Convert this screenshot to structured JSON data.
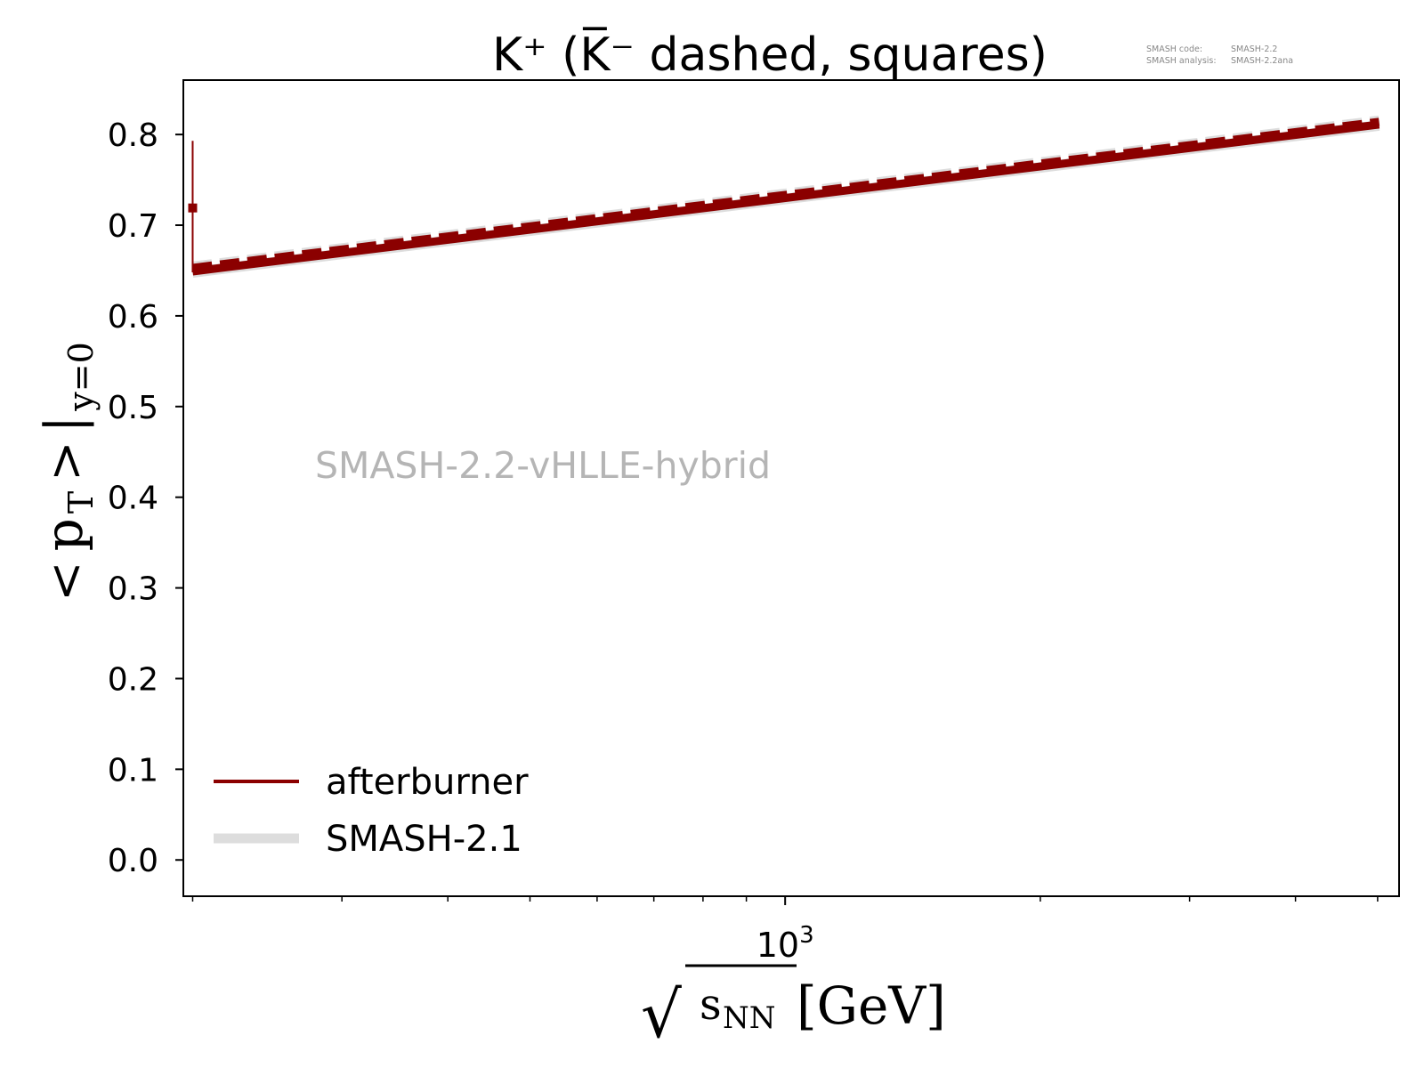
{
  "chart_data": {
    "type": "line",
    "title": "K⁺ (K̅⁻ dashed, squares)",
    "watermark": "SMASH-2.2-vHLLE-hybrid",
    "version_info": {
      "code_label": "SMASH code:",
      "code_value": "SMASH-2.2",
      "analysis_label": "SMASH analysis:",
      "analysis_value": "SMASH-2.2ana"
    },
    "xlabel": {
      "sqrt": "√",
      "s": "s",
      "subscript": "NN",
      "unit": "[GeV]"
    },
    "ylabel": {
      "lt": "<",
      "p": "p",
      "subscript": "T",
      "gt": ">",
      "bar": "|",
      "cond": "y=0"
    },
    "xscale": "log",
    "xlim": [
      195,
      5300
    ],
    "ylim": [
      -0.04,
      0.86
    ],
    "x_major_ticks": [
      {
        "value": 1000,
        "base": "10",
        "exp": "3"
      }
    ],
    "x_minor_ticks": [
      200,
      300,
      400,
      500,
      600,
      700,
      800,
      900,
      2000,
      3000,
      4000,
      5000
    ],
    "y_ticks": [
      {
        "value": 0.0,
        "label": "0.0"
      },
      {
        "value": 0.1,
        "label": "0.1"
      },
      {
        "value": 0.2,
        "label": "0.2"
      },
      {
        "value": 0.3,
        "label": "0.3"
      },
      {
        "value": 0.4,
        "label": "0.4"
      },
      {
        "value": 0.5,
        "label": "0.5"
      },
      {
        "value": 0.6,
        "label": "0.6"
      },
      {
        "value": 0.7,
        "label": "0.7"
      },
      {
        "value": 0.8,
        "label": "0.8"
      }
    ],
    "series": [
      {
        "name": "SMASH-2.1",
        "kind": "reference",
        "color": "#dddddd",
        "dashed": false,
        "x": [
          200,
          5020
        ],
        "y": [
          0.648,
          0.81
        ]
      },
      {
        "name": "SMASH-2.1",
        "kind": "reference",
        "color": "#dddddd",
        "dashed": true,
        "x": [
          200,
          5020
        ],
        "y": [
          0.654,
          0.815
        ]
      },
      {
        "name": "afterburner",
        "kind": "main",
        "color": "#8b0000",
        "dashed": false,
        "x": [
          200,
          5020
        ],
        "y": [
          0.649,
          0.811
        ]
      },
      {
        "name": "afterburner",
        "kind": "main",
        "color": "#8b0000",
        "dashed": true,
        "x": [
          200,
          5020
        ],
        "y": [
          0.653,
          0.814
        ]
      }
    ],
    "data_points": [
      {
        "x": 200,
        "y": 0.719,
        "ylow": 0.648,
        "yhigh": 0.793,
        "color": "#8b0000",
        "marker": "square"
      }
    ],
    "legend": {
      "placement": "lower-left",
      "entries": [
        {
          "label": "afterburner",
          "color": "#8b0000"
        },
        {
          "label": "SMASH-2.1",
          "color": "#dddddd"
        }
      ]
    },
    "colors": {
      "afterburner": "#8b0000",
      "smash21": "#dddddd",
      "watermark": "#b5b5b5",
      "version_text": "#888888"
    }
  }
}
